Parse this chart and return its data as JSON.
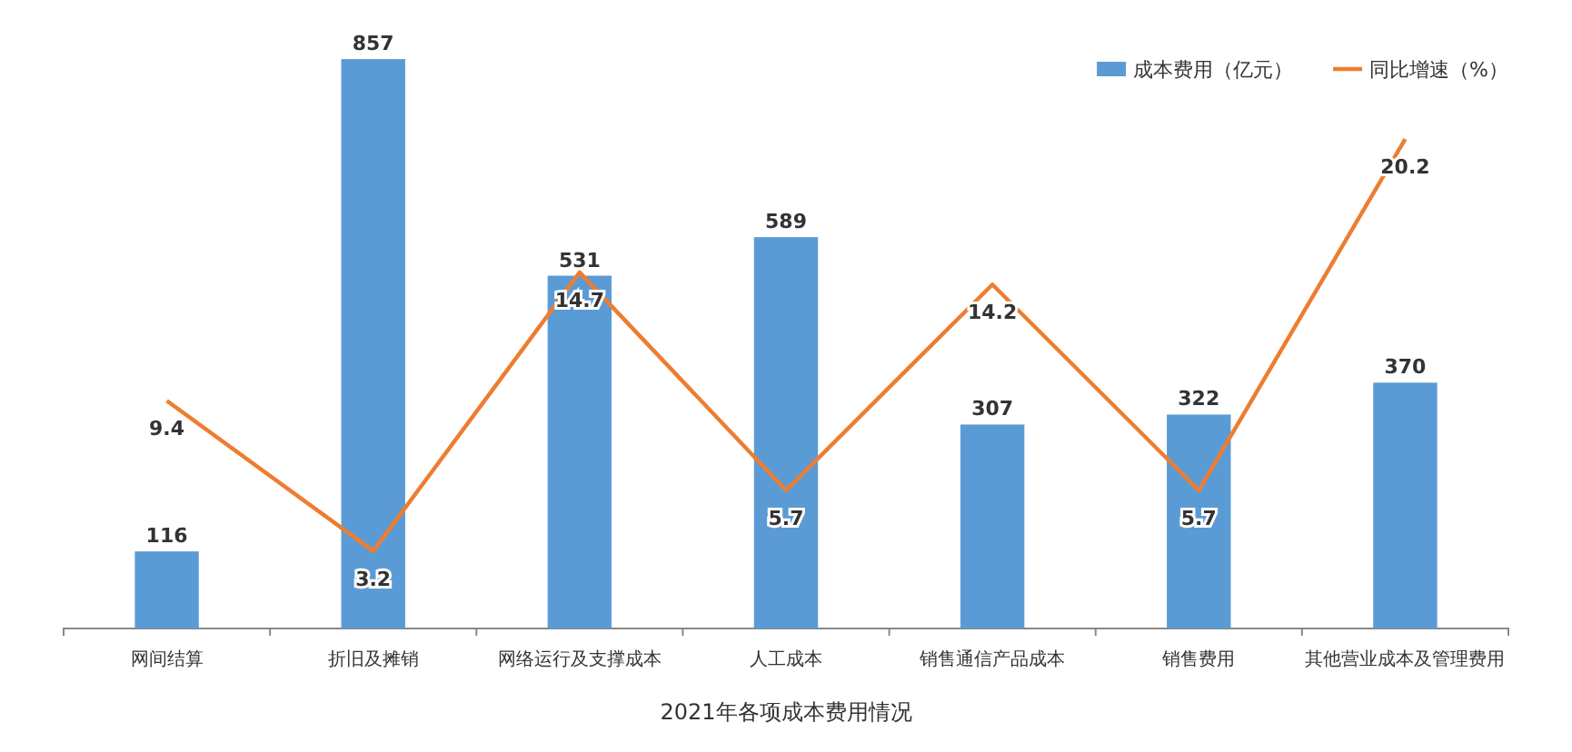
{
  "chart_data": {
    "type": "bar",
    "title": "2021年各项成本费用情况",
    "categories": [
      "网间结算",
      "折旧及摊销",
      "网络运行及支撑成本",
      "人工成本",
      "销售通信产品成本",
      "销售费用",
      "其他营业成本及管理费用"
    ],
    "series": [
      {
        "name": "成本费用（亿元）",
        "color": "#5b9bd5",
        "values": [
          116,
          857,
          531,
          589,
          307,
          322,
          370
        ]
      },
      {
        "name": "同比增速（%）",
        "type": "line",
        "axis": "y2",
        "color": "#ed7d31",
        "values": [
          9.4,
          3.2,
          14.7,
          5.7,
          14.2,
          5.7,
          20.2
        ]
      }
    ],
    "tick_labels": "x",
    "data_labels": true,
    "legend": "top right",
    "marker": "none"
  }
}
